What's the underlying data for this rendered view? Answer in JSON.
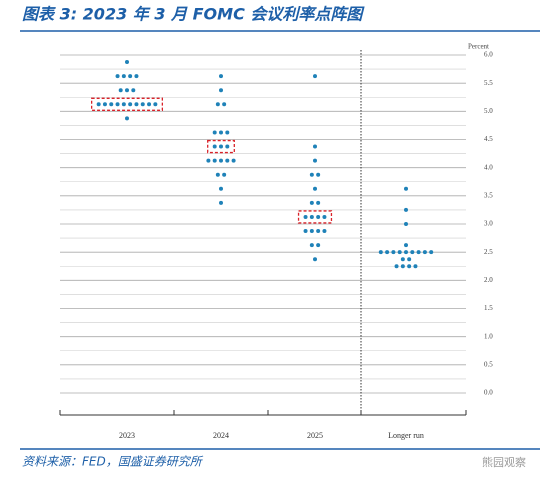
{
  "chart_data": {
    "type": "dotplot",
    "title": "图表 3:  2023 年 3 月 FOMC 会议利率点阵图",
    "y_label": "Percent",
    "source": "资料来源：FED，国盛证券研究所",
    "watermark": "熊园观察",
    "categories": [
      "2023",
      "2024",
      "2025",
      "Longer run"
    ],
    "dots": [
      [
        5.875,
        5.625,
        5.625,
        5.625,
        5.625,
        5.375,
        5.375,
        5.375,
        5.125,
        5.125,
        5.125,
        5.125,
        5.125,
        5.125,
        5.125,
        5.125,
        5.125,
        5.125,
        4.875
      ],
      [
        5.625,
        5.375,
        5.125,
        5.125,
        4.625,
        4.625,
        4.625,
        4.375,
        4.375,
        4.375,
        4.125,
        4.125,
        4.125,
        4.125,
        4.125,
        3.875,
        3.875,
        3.625,
        3.375
      ],
      [
        5.625,
        4.375,
        4.125,
        3.875,
        3.875,
        3.625,
        3.375,
        3.375,
        3.125,
        3.125,
        3.125,
        3.125,
        2.875,
        2.875,
        2.875,
        2.875,
        2.625,
        2.625,
        2.375
      ],
      [
        3.625,
        3.25,
        3.0,
        2.625,
        2.5,
        2.5,
        2.5,
        2.5,
        2.5,
        2.5,
        2.5,
        2.5,
        2.5,
        2.375,
        2.375,
        2.25,
        2.25,
        2.25,
        2.25
      ]
    ],
    "highlight_rates": [
      5.125,
      4.375,
      3.125,
      null
    ],
    "color": "#1f82b8",
    "highlight_color": "#d9232a",
    "ylim": [
      0,
      6
    ],
    "yticks": [
      {
        "value": 0,
        "label": "0.0"
      },
      0.5,
      {
        "value": 1,
        "label": "1.0"
      },
      1.5,
      {
        "value": 2,
        "label": "2.0"
      },
      2.5,
      {
        "value": 3,
        "label": "3.0"
      },
      3.5,
      {
        "value": 4,
        "label": "4.0"
      },
      4.5,
      {
        "value": 5,
        "label": "5.0"
      },
      5.5,
      {
        "value": 6,
        "label": "6.0"
      }
    ],
    "grid": true
  }
}
